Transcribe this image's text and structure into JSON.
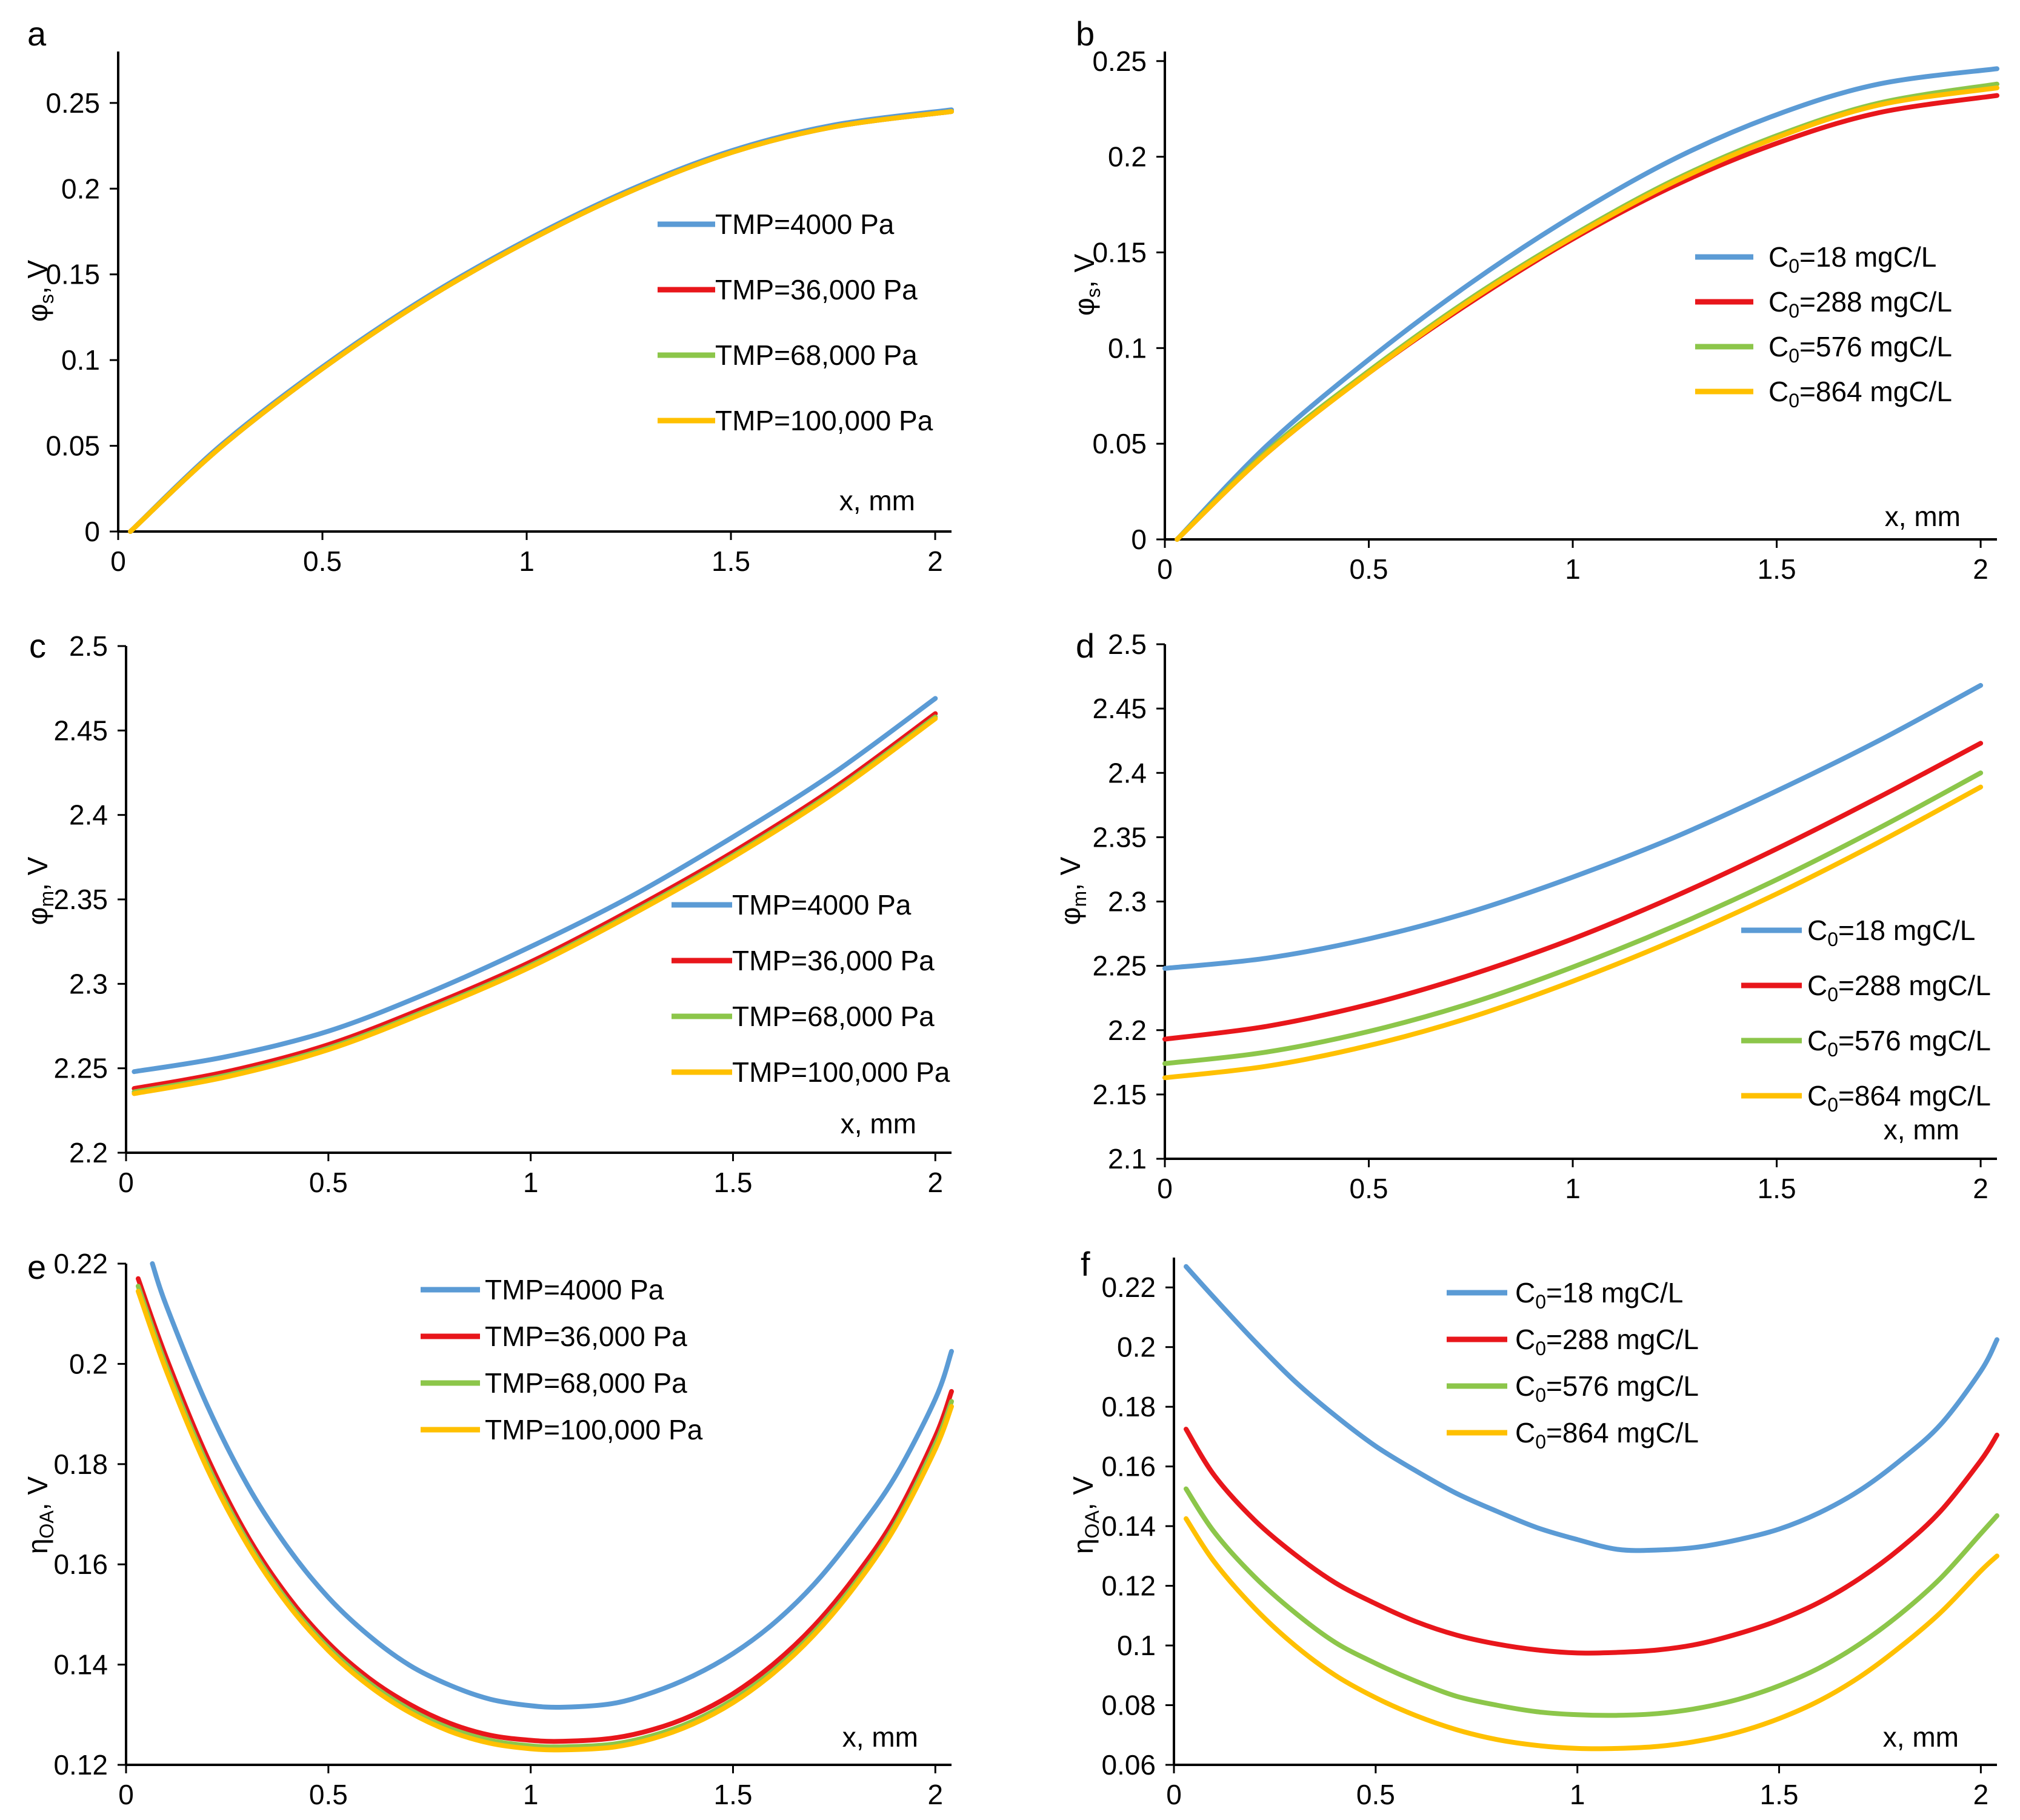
{
  "colors": {
    "blue": "#5b9bd5",
    "red": "#e8161b",
    "green": "#8cc64a",
    "yellow": "#ffc000"
  },
  "chart_data": [
    {
      "panel": "a",
      "type": "line",
      "ylabel_main": "φ",
      "ylabel_sub": "s",
      "ylabel_unit": ", V",
      "xlabel": "x, mm",
      "xlim": [
        0,
        2.04
      ],
      "ylim": [
        0,
        0.28
      ],
      "xticks": [
        "0",
        "0.5",
        "1",
        "1.5",
        "2"
      ],
      "yticks": [
        "0",
        "0.05",
        "0.1",
        "0.15",
        "0.2",
        "0.25"
      ],
      "legend_position": "middle-right",
      "series": [
        {
          "name": "TMP=4000 Pa",
          "color": "blue",
          "x": [
            0.03,
            0.25,
            0.5,
            0.75,
            1.0,
            1.25,
            1.5,
            1.75,
            2.04
          ],
          "y": [
            0,
            0.05,
            0.096,
            0.136,
            0.17,
            0.199,
            0.222,
            0.237,
            0.246
          ]
        },
        {
          "name": "TMP=36,000 Pa",
          "color": "red",
          "x": [
            0.03,
            0.25,
            0.5,
            0.75,
            1.0,
            1.25,
            1.5,
            1.75,
            2.04
          ],
          "y": [
            0,
            0.049,
            0.095,
            0.135,
            0.169,
            0.198,
            0.221,
            0.236,
            0.245
          ]
        },
        {
          "name": "TMP=68,000 Pa",
          "color": "green",
          "x": [
            0.03,
            0.25,
            0.5,
            0.75,
            1.0,
            1.25,
            1.5,
            1.75,
            2.04
          ],
          "y": [
            0,
            0.049,
            0.095,
            0.135,
            0.169,
            0.198,
            0.221,
            0.236,
            0.245
          ]
        },
        {
          "name": "TMP=100,000 Pa",
          "color": "yellow",
          "x": [
            0.03,
            0.25,
            0.5,
            0.75,
            1.0,
            1.25,
            1.5,
            1.75,
            2.04
          ],
          "y": [
            0,
            0.049,
            0.095,
            0.135,
            0.169,
            0.198,
            0.221,
            0.236,
            0.245
          ]
        }
      ]
    },
    {
      "panel": "b",
      "type": "line",
      "ylabel_main": "φ",
      "ylabel_sub": "s",
      "ylabel_unit": ", V",
      "xlabel": "x, mm",
      "xlim": [
        0,
        2.04
      ],
      "ylim": [
        0,
        0.255
      ],
      "xticks": [
        "0",
        "0.5",
        "1",
        "1.5",
        "2"
      ],
      "yticks": [
        "0",
        "0.05",
        "0.1",
        "0.15",
        "0.2",
        "0.25"
      ],
      "legend_position": "lower-right",
      "series": [
        {
          "name_pre": "C",
          "name_sub": "0",
          "name_post": "=18 mgC/L",
          "color": "blue",
          "x": [
            0.03,
            0.25,
            0.5,
            0.75,
            1.0,
            1.25,
            1.5,
            1.75,
            2.04
          ],
          "y": [
            0,
            0.049,
            0.094,
            0.134,
            0.169,
            0.199,
            0.222,
            0.238,
            0.246
          ]
        },
        {
          "name_pre": "C",
          "name_sub": "0",
          "name_post": "=288 mgC/L",
          "color": "red",
          "x": [
            0.03,
            0.25,
            0.5,
            0.75,
            1.0,
            1.25,
            1.5,
            1.75,
            2.04
          ],
          "y": [
            0,
            0.045,
            0.087,
            0.124,
            0.157,
            0.185,
            0.207,
            0.223,
            0.232
          ]
        },
        {
          "name_pre": "C",
          "name_sub": "0",
          "name_post": "=576 mgC/L",
          "color": "green",
          "x": [
            0.03,
            0.25,
            0.5,
            0.75,
            1.0,
            1.25,
            1.5,
            1.75,
            2.04
          ],
          "y": [
            0,
            0.046,
            0.088,
            0.126,
            0.159,
            0.188,
            0.211,
            0.228,
            0.238
          ]
        },
        {
          "name_pre": "C",
          "name_sub": "0",
          "name_post": "=864 mgC/L",
          "color": "yellow",
          "x": [
            0.03,
            0.25,
            0.5,
            0.75,
            1.0,
            1.25,
            1.5,
            1.75,
            2.04
          ],
          "y": [
            0,
            0.045,
            0.087,
            0.125,
            0.158,
            0.187,
            0.21,
            0.227,
            0.236
          ]
        }
      ]
    },
    {
      "panel": "c",
      "type": "line",
      "ylabel_main": "φ",
      "ylabel_sub": "m",
      "ylabel_unit": ", V",
      "xlabel": "x, mm",
      "xlim": [
        0,
        2.04
      ],
      "ylim": [
        2.2,
        2.5
      ],
      "xticks": [
        "0",
        "0.5",
        "1",
        "1.5",
        "2"
      ],
      "yticks": [
        "2.2",
        "2.25",
        "2.3",
        "2.35",
        "2.4",
        "2.45",
        "2.5"
      ],
      "legend_position": "lower-right",
      "series": [
        {
          "name": "TMP=4000 Pa",
          "color": "blue",
          "x": [
            0.02,
            0.25,
            0.5,
            0.75,
            1.0,
            1.25,
            1.5,
            1.75,
            2.0
          ],
          "y": [
            2.248,
            2.257,
            2.272,
            2.295,
            2.322,
            2.352,
            2.387,
            2.425,
            2.469
          ]
        },
        {
          "name": "TMP=36,000 Pa",
          "color": "red",
          "x": [
            0.02,
            0.25,
            0.5,
            0.75,
            1.0,
            1.25,
            1.5,
            1.75,
            2.0
          ],
          "y": [
            2.238,
            2.248,
            2.264,
            2.287,
            2.313,
            2.344,
            2.378,
            2.416,
            2.46
          ]
        },
        {
          "name": "TMP=68,000 Pa",
          "color": "green",
          "x": [
            0.02,
            0.25,
            0.5,
            0.75,
            1.0,
            1.25,
            1.5,
            1.75,
            2.0
          ],
          "y": [
            2.236,
            2.246,
            2.262,
            2.285,
            2.311,
            2.342,
            2.376,
            2.414,
            2.458
          ]
        },
        {
          "name": "TMP=100,000 Pa",
          "color": "yellow",
          "x": [
            0.02,
            0.25,
            0.5,
            0.75,
            1.0,
            1.25,
            1.5,
            1.75,
            2.0
          ],
          "y": [
            2.235,
            2.245,
            2.261,
            2.284,
            2.31,
            2.341,
            2.375,
            2.413,
            2.457
          ]
        }
      ]
    },
    {
      "panel": "d",
      "type": "line",
      "ylabel_main": "φ",
      "ylabel_sub": "m",
      "ylabel_unit": ", V",
      "xlabel": "x, mm",
      "xlim": [
        0,
        2.04
      ],
      "ylim": [
        2.1,
        2.5
      ],
      "xticks": [
        "0",
        "0.5",
        "1",
        "1.5",
        "2"
      ],
      "yticks": [
        "2.1",
        "2.15",
        "2.2",
        "2.25",
        "2.3",
        "2.35",
        "2.4",
        "2.45",
        "2.5"
      ],
      "legend_position": "lower-right",
      "series": [
        {
          "name_pre": "C",
          "name_sub": "0",
          "name_post": "=18 mgC/L",
          "color": "blue",
          "x": [
            0.0,
            0.25,
            0.5,
            0.75,
            1.0,
            1.25,
            1.5,
            1.75,
            2.0
          ],
          "y": [
            2.248,
            2.256,
            2.271,
            2.292,
            2.319,
            2.35,
            2.386,
            2.425,
            2.468
          ]
        },
        {
          "name_pre": "C",
          "name_sub": "0",
          "name_post": "=288 mgC/L",
          "color": "red",
          "x": [
            0.0,
            0.25,
            0.5,
            0.75,
            1.0,
            1.25,
            1.5,
            1.75,
            2.0
          ],
          "y": [
            2.193,
            2.203,
            2.22,
            2.243,
            2.271,
            2.304,
            2.341,
            2.381,
            2.423
          ]
        },
        {
          "name_pre": "C",
          "name_sub": "0",
          "name_post": "=576 mgC/L",
          "color": "green",
          "x": [
            0.0,
            0.25,
            0.5,
            0.75,
            1.0,
            1.25,
            1.5,
            1.75,
            2.0
          ],
          "y": [
            2.174,
            2.183,
            2.199,
            2.221,
            2.249,
            2.281,
            2.317,
            2.357,
            2.4
          ]
        },
        {
          "name_pre": "C",
          "name_sub": "0",
          "name_post": "=864 mgC/L",
          "color": "yellow",
          "x": [
            0.0,
            0.25,
            0.5,
            0.75,
            1.0,
            1.25,
            1.5,
            1.75,
            2.0
          ],
          "y": [
            2.163,
            2.172,
            2.188,
            2.21,
            2.238,
            2.27,
            2.306,
            2.346,
            2.389
          ]
        }
      ]
    },
    {
      "panel": "e",
      "type": "line",
      "ylabel_main": "η",
      "ylabel_sub": "OA",
      "ylabel_unit": ", V",
      "xlabel": "x, mm",
      "xlim": [
        0,
        2.04
      ],
      "ylim": [
        0.12,
        0.22
      ],
      "xticks": [
        "0",
        "0.5",
        "1",
        "1.5",
        "2"
      ],
      "yticks": [
        "0.12",
        "0.14",
        "0.16",
        "0.18",
        "0.2",
        "0.22"
      ],
      "legend_position": "top-center",
      "series": [
        {
          "name": "TMP=4000 Pa",
          "color": "blue",
          "x": [
            0.065,
            0.1,
            0.2,
            0.3,
            0.4,
            0.5,
            0.6,
            0.7,
            0.8,
            0.9,
            1.0,
            1.08,
            1.2,
            1.3,
            1.4,
            1.5,
            1.6,
            1.7,
            1.8,
            1.9,
            2.0,
            2.04
          ],
          "y": [
            0.22,
            0.2115,
            0.1918,
            0.1758,
            0.1633,
            0.1534,
            0.1458,
            0.1399,
            0.1359,
            0.1331,
            0.1318,
            0.1315,
            0.1322,
            0.1344,
            0.1377,
            0.1422,
            0.1482,
            0.156,
            0.1659,
            0.1774,
            0.193,
            0.2025
          ]
        },
        {
          "name": "TMP=36,000 Pa",
          "color": "red",
          "x": [
            0.03,
            0.1,
            0.2,
            0.3,
            0.4,
            0.5,
            0.6,
            0.7,
            0.8,
            0.9,
            1.0,
            1.08,
            1.2,
            1.3,
            1.4,
            1.5,
            1.6,
            1.7,
            1.8,
            1.9,
            2.0,
            2.04
          ],
          "y": [
            0.217,
            0.2011,
            0.1815,
            0.1657,
            0.1536,
            0.1443,
            0.1373,
            0.1321,
            0.1283,
            0.1259,
            0.1249,
            0.1247,
            0.1253,
            0.127,
            0.1299,
            0.1342,
            0.1401,
            0.1477,
            0.1574,
            0.1692,
            0.1855,
            0.1945
          ]
        },
        {
          "name": "TMP=68,000 Pa",
          "color": "green",
          "x": [
            0.03,
            0.1,
            0.2,
            0.3,
            0.4,
            0.5,
            0.6,
            0.7,
            0.8,
            0.9,
            1.0,
            1.08,
            1.2,
            1.3,
            1.4,
            1.5,
            1.6,
            1.7,
            1.8,
            1.9,
            2.0,
            2.04
          ],
          "y": [
            0.2155,
            0.1995,
            0.1801,
            0.1646,
            0.1526,
            0.1434,
            0.1364,
            0.1311,
            0.1273,
            0.1249,
            0.1238,
            0.1236,
            0.1241,
            0.1258,
            0.1287,
            0.133,
            0.1389,
            0.1465,
            0.1561,
            0.1679,
            0.184,
            0.1925
          ]
        },
        {
          "name": "TMP=100,000 Pa",
          "color": "yellow",
          "x": [
            0.03,
            0.1,
            0.2,
            0.3,
            0.4,
            0.5,
            0.6,
            0.7,
            0.8,
            0.9,
            1.0,
            1.08,
            1.2,
            1.3,
            1.4,
            1.5,
            1.6,
            1.7,
            1.8,
            1.9,
            2.0,
            2.04
          ],
          "y": [
            0.2145,
            0.1985,
            0.1792,
            0.1639,
            0.152,
            0.1428,
            0.1358,
            0.1305,
            0.1267,
            0.1243,
            0.1232,
            0.123,
            0.1235,
            0.1252,
            0.1281,
            0.1324,
            0.1383,
            0.1459,
            0.1555,
            0.1673,
            0.183,
            0.1915
          ]
        }
      ]
    },
    {
      "panel": "f",
      "type": "line",
      "ylabel_main": "η",
      "ylabel_sub": "OA",
      "ylabel_unit": ", V",
      "xlabel": "x, mm",
      "xlim": [
        0,
        2.04
      ],
      "ylim": [
        0.06,
        0.23
      ],
      "xticks": [
        "0",
        "0.5",
        "1",
        "1.5",
        "2"
      ],
      "yticks": [
        "0.06",
        "0.08",
        "0.1",
        "0.12",
        "0.14",
        "0.16",
        "0.18",
        "0.2",
        "0.22"
      ],
      "legend_position": "top-center",
      "series": [
        {
          "name_pre": "C",
          "name_sub": "0",
          "name_post": "=18 mgC/L",
          "color": "blue",
          "x": [
            0.03,
            0.1,
            0.2,
            0.3,
            0.4,
            0.5,
            0.6,
            0.7,
            0.8,
            0.9,
            1.0,
            1.1,
            1.2,
            1.3,
            1.4,
            1.5,
            1.6,
            1.7,
            1.8,
            1.9,
            2.0,
            2.04
          ],
          "y": [
            0.227,
            0.2165,
            0.202,
            0.1885,
            0.177,
            0.1668,
            0.1585,
            0.151,
            0.145,
            0.1395,
            0.1355,
            0.1322,
            0.132,
            0.133,
            0.1355,
            0.139,
            0.1445,
            0.152,
            0.162,
            0.174,
            0.192,
            0.2025
          ]
        },
        {
          "name_pre": "C",
          "name_sub": "0",
          "name_post": "=288 mgC/L",
          "color": "red",
          "x": [
            0.03,
            0.1,
            0.2,
            0.3,
            0.4,
            0.5,
            0.6,
            0.7,
            0.8,
            0.9,
            1.0,
            1.1,
            1.2,
            1.3,
            1.4,
            1.5,
            1.6,
            1.7,
            1.8,
            1.9,
            2.0,
            2.04
          ],
          "y": [
            0.1725,
            0.157,
            0.142,
            0.1305,
            0.121,
            0.114,
            0.108,
            0.1035,
            0.1005,
            0.0985,
            0.0975,
            0.0977,
            0.0985,
            0.1005,
            0.104,
            0.1085,
            0.1145,
            0.1225,
            0.1325,
            0.145,
            0.162,
            0.1705
          ]
        },
        {
          "name_pre": "C",
          "name_sub": "0",
          "name_post": "=576 mgC/L",
          "color": "green",
          "x": [
            0.03,
            0.1,
            0.2,
            0.3,
            0.4,
            0.5,
            0.6,
            0.7,
            0.8,
            0.9,
            1.0,
            1.1,
            1.2,
            1.3,
            1.4,
            1.5,
            1.6,
            1.7,
            1.8,
            1.9,
            2.0,
            2.04
          ],
          "y": [
            0.1525,
            0.138,
            0.123,
            0.111,
            0.101,
            0.094,
            0.088,
            0.083,
            0.08,
            0.0778,
            0.0768,
            0.0766,
            0.0772,
            0.079,
            0.082,
            0.0865,
            0.0925,
            0.1005,
            0.1105,
            0.1225,
            0.1375,
            0.1435
          ]
        },
        {
          "name_pre": "C",
          "name_sub": "0",
          "name_post": "=864 mgC/L",
          "color": "yellow",
          "x": [
            0.03,
            0.1,
            0.2,
            0.3,
            0.4,
            0.5,
            0.6,
            0.7,
            0.8,
            0.9,
            1.0,
            1.1,
            1.2,
            1.3,
            1.4,
            1.5,
            1.6,
            1.7,
            1.8,
            1.9,
            2.0,
            2.04
          ],
          "y": [
            0.1425,
            0.128,
            0.1125,
            0.1,
            0.09,
            0.0825,
            0.0765,
            0.0718,
            0.0685,
            0.0665,
            0.0655,
            0.0655,
            0.0662,
            0.068,
            0.071,
            0.0755,
            0.0815,
            0.0895,
            0.0995,
            0.111,
            0.125,
            0.13
          ]
        }
      ]
    }
  ]
}
